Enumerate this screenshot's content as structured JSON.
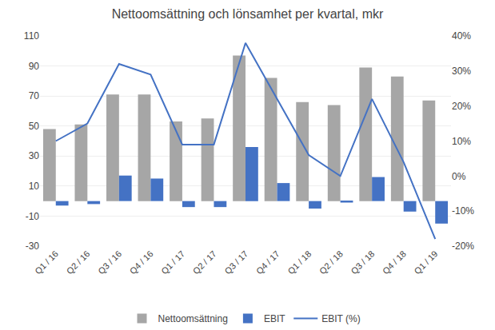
{
  "chart_data": {
    "type": "bar",
    "title": "Nettoomsättning och lönsamhet per kvartal, mkr",
    "categories": [
      "Q1 / 16",
      "Q2 / 16",
      "Q3 / 16",
      "Q4 / 16",
      "Q1 / 17",
      "Q2 / 17",
      "Q3 / 17",
      "Q4 / 17",
      "Q1 / 18",
      "Q2 / 18",
      "Q3 / 18",
      "Q4 / 18",
      "Q1 / 19"
    ],
    "series": [
      {
        "name": "Nettoomsättning",
        "type": "bar",
        "color": "#a6a6a6",
        "values": [
          48,
          51,
          71,
          71,
          53,
          55,
          97,
          82,
          66,
          64,
          89,
          83,
          67
        ]
      },
      {
        "name": "EBIT",
        "type": "bar",
        "color": "#4472c4",
        "values": [
          -3,
          -2,
          17,
          15,
          -4,
          -4,
          36,
          12,
          -5,
          -1,
          16,
          -7,
          -15
        ]
      },
      {
        "name": "EBIT (%)",
        "type": "line",
        "color": "#4472c4",
        "axis": "y2",
        "values": [
          10,
          15,
          32,
          29,
          9,
          9,
          38,
          22,
          6,
          0,
          22,
          4,
          -18
        ]
      }
    ],
    "ylim": [
      -30,
      110
    ],
    "yticks": [
      -30,
      -10,
      10,
      30,
      50,
      70,
      90,
      110
    ],
    "y2lim": [
      -20,
      40
    ],
    "y2ticks": [
      {
        "value": -20,
        "label": "-20%"
      },
      {
        "value": -10,
        "label": "-10%"
      },
      {
        "value": 0,
        "label": "0%"
      },
      {
        "value": 10,
        "label": "10%"
      },
      {
        "value": 20,
        "label": "20%"
      },
      {
        "value": 30,
        "label": "30%"
      },
      {
        "value": 40,
        "label": "40%"
      }
    ],
    "grid": true,
    "legend": "bottom"
  }
}
